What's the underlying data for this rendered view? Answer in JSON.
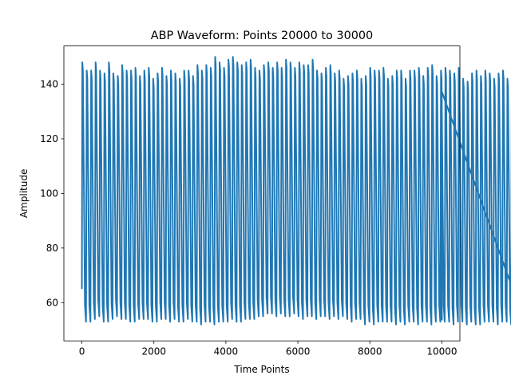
{
  "chart_data": {
    "type": "line",
    "title": "ABP Waveform: Points 20000 to 30000",
    "xlabel": "Time Points",
    "ylabel": "Amplitude",
    "xlim": [
      -500,
      10500
    ],
    "ylim": [
      46,
      154
    ],
    "x_ticks": [
      0,
      2000,
      4000,
      6000,
      8000,
      10000
    ],
    "x_tick_labels": [
      "0",
      "2000",
      "4000",
      "6000",
      "8000",
      "10000"
    ],
    "y_ticks": [
      60,
      80,
      100,
      120,
      140
    ],
    "y_tick_labels": [
      "60",
      "80",
      "100",
      "120",
      "140"
    ],
    "grid": false,
    "series": [
      {
        "color": "#1f77b4",
        "x_start": 0,
        "x_end": 10000,
        "start_value": 65,
        "end_value": 137.5,
        "end_trough": 53.5,
        "beat_length": 123,
        "peaks": [
          148,
          145,
          145,
          148,
          145,
          144,
          148,
          144,
          143,
          147,
          145,
          145,
          146,
          143,
          145,
          146,
          142,
          144,
          146,
          143,
          145,
          144,
          142,
          145,
          145,
          143,
          147,
          145,
          147,
          146,
          150,
          148,
          146,
          149,
          150,
          148,
          147,
          148,
          149,
          146,
          145,
          147,
          148,
          146,
          148,
          146,
          149,
          148,
          146,
          148,
          147,
          147,
          149,
          145,
          144,
          146,
          147,
          144,
          145,
          142,
          143,
          144,
          145,
          142,
          143,
          146,
          145,
          145,
          146,
          142,
          143,
          145,
          145,
          142,
          145,
          145,
          146,
          143,
          146,
          147,
          143,
          145,
          146,
          145,
          144,
          146,
          142,
          141,
          144,
          145,
          143,
          145,
          144,
          142,
          144,
          145,
          142,
          144,
          146,
          145
        ],
        "troughs": [
          53,
          53,
          54,
          55,
          53,
          53,
          54,
          55,
          54,
          54,
          53,
          53,
          54,
          54,
          54,
          53,
          53,
          54,
          54,
          53,
          54,
          53,
          53,
          54,
          53,
          53,
          52,
          53,
          53,
          52,
          53,
          53,
          53,
          54,
          53,
          53,
          54,
          54,
          54,
          55,
          55,
          56,
          56,
          55,
          56,
          55,
          55,
          56,
          55,
          54,
          55,
          55,
          54,
          55,
          55,
          54,
          55,
          54,
          55,
          54,
          53,
          54,
          54,
          52,
          53,
          52,
          53,
          53,
          53,
          53,
          52,
          53,
          52,
          53,
          53,
          52,
          53,
          53,
          52,
          53,
          53,
          53,
          53,
          52,
          53,
          53,
          52,
          53,
          52,
          52,
          53,
          53,
          53,
          52,
          53,
          53,
          52,
          53,
          53,
          53
        ]
      }
    ]
  }
}
